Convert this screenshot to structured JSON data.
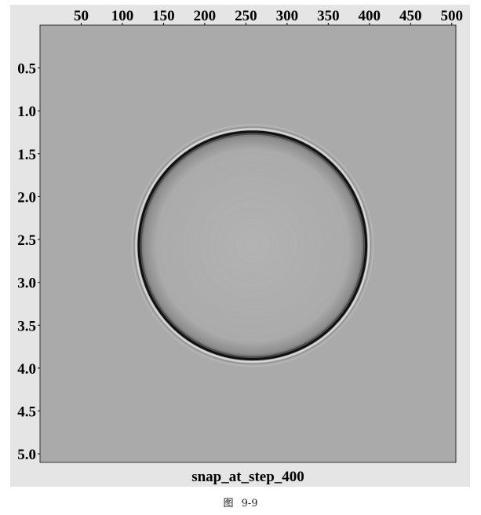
{
  "chart_data": {
    "type": "heatmap",
    "colormap": "grayscale",
    "title": "snap_at_step_400",
    "x_ticks": [
      50,
      100,
      150,
      200,
      250,
      300,
      350,
      400,
      450,
      500
    ],
    "y_ticks": [
      0.5,
      1.0,
      1.5,
      2.0,
      2.5,
      3.0,
      3.5,
      4.0,
      4.5,
      5.0
    ],
    "y_tick_labels": [
      "0.5",
      "1.0",
      "1.5",
      "2.0",
      "2.5",
      "3.0",
      "3.5",
      "4.0",
      "4.5",
      "5.0"
    ],
    "xlim": [
      0,
      505
    ],
    "ylim": [
      0,
      5.1
    ],
    "x_axis_position": "top",
    "y_axis_reversed": true,
    "grid": false,
    "wavefront": {
      "shape": "circle",
      "center": {
        "x": 258,
        "y": 2.57
      },
      "radius_x": 138,
      "background_color": "#aaaaaa",
      "interior_color": "#b0b0b0",
      "ring_color": "#111111"
    }
  },
  "caption": "图 9-9"
}
